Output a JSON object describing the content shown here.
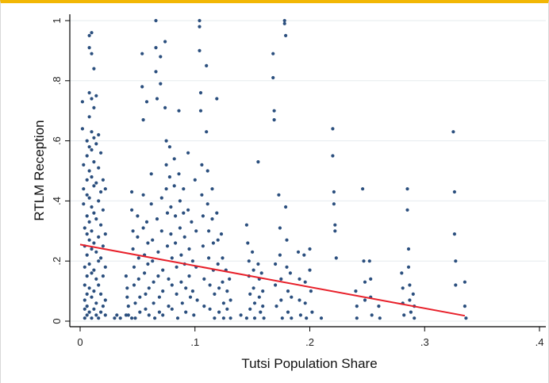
{
  "chart_data": {
    "type": "scatter",
    "xlabel": "Tutsi Population Share",
    "ylabel": "RTLM Reception",
    "xlim": [
      0,
      0.4
    ],
    "ylim": [
      0,
      1
    ],
    "x_ticks": [
      {
        "value": 0,
        "label": "0"
      },
      {
        "value": 0.1,
        "label": ".1"
      },
      {
        "value": 0.2,
        "label": ".2"
      },
      {
        "value": 0.3,
        "label": ".3"
      },
      {
        "value": 0.4,
        "label": ".4"
      }
    ],
    "y_ticks": [
      {
        "value": 0,
        "label": "0"
      },
      {
        "value": 0.2,
        "label": ".2"
      },
      {
        "value": 0.4,
        "label": ".4"
      },
      {
        "value": 0.6,
        "label": ".6"
      },
      {
        "value": 0.8,
        "label": ".8"
      },
      {
        "value": 1,
        "label": "1"
      }
    ],
    "grid": true,
    "point_color": "#2b4f7e",
    "fit_color": "#e8202a",
    "fit_line": {
      "x": [
        0,
        0.335
      ],
      "y": [
        0.255,
        0.018
      ]
    },
    "points": [
      [
        0.002,
        0.73
      ],
      [
        0.002,
        0.64
      ],
      [
        0.003,
        0.52
      ],
      [
        0.003,
        0.44
      ],
      [
        0.003,
        0.39
      ],
      [
        0.004,
        0.31
      ],
      [
        0.004,
        0.25
      ],
      [
        0.004,
        0.18
      ],
      [
        0.004,
        0.12
      ],
      [
        0.004,
        0.07
      ],
      [
        0.004,
        0.04
      ],
      [
        0.004,
        0.01
      ],
      [
        0.006,
        0.6
      ],
      [
        0.006,
        0.55
      ],
      [
        0.006,
        0.47
      ],
      [
        0.006,
        0.42
      ],
      [
        0.006,
        0.35
      ],
      [
        0.006,
        0.29
      ],
      [
        0.006,
        0.22
      ],
      [
        0.006,
        0.15
      ],
      [
        0.006,
        0.09
      ],
      [
        0.006,
        0.05
      ],
      [
        0.006,
        0.02
      ],
      [
        0.008,
        0.95
      ],
      [
        0.008,
        0.91
      ],
      [
        0.008,
        0.76
      ],
      [
        0.008,
        0.68
      ],
      [
        0.008,
        0.58
      ],
      [
        0.008,
        0.5
      ],
      [
        0.008,
        0.41
      ],
      [
        0.008,
        0.33
      ],
      [
        0.008,
        0.27
      ],
      [
        0.008,
        0.19
      ],
      [
        0.008,
        0.11
      ],
      [
        0.008,
        0.03
      ],
      [
        0.01,
        0.96
      ],
      [
        0.01,
        0.89
      ],
      [
        0.01,
        0.74
      ],
      [
        0.01,
        0.63
      ],
      [
        0.01,
        0.57
      ],
      [
        0.01,
        0.48
      ],
      [
        0.01,
        0.38
      ],
      [
        0.01,
        0.3
      ],
      [
        0.01,
        0.24
      ],
      [
        0.01,
        0.16
      ],
      [
        0.01,
        0.08
      ],
      [
        0.01,
        0.01
      ],
      [
        0.012,
        0.84
      ],
      [
        0.012,
        0.71
      ],
      [
        0.012,
        0.61
      ],
      [
        0.012,
        0.53
      ],
      [
        0.012,
        0.45
      ],
      [
        0.012,
        0.36
      ],
      [
        0.012,
        0.26
      ],
      [
        0.012,
        0.17
      ],
      [
        0.012,
        0.1
      ],
      [
        0.012,
        0.04
      ],
      [
        0.014,
        0.75
      ],
      [
        0.014,
        0.59
      ],
      [
        0.014,
        0.46
      ],
      [
        0.014,
        0.34
      ],
      [
        0.014,
        0.23
      ],
      [
        0.014,
        0.14
      ],
      [
        0.014,
        0.06
      ],
      [
        0.014,
        0.02
      ],
      [
        0.016,
        0.62
      ],
      [
        0.016,
        0.51
      ],
      [
        0.016,
        0.4
      ],
      [
        0.016,
        0.28
      ],
      [
        0.016,
        0.2
      ],
      [
        0.016,
        0.12
      ],
      [
        0.016,
        0.01
      ],
      [
        0.018,
        0.56
      ],
      [
        0.018,
        0.43
      ],
      [
        0.018,
        0.32
      ],
      [
        0.018,
        0.21
      ],
      [
        0.018,
        0.09
      ],
      [
        0.018,
        0.03
      ],
      [
        0.02,
        0.47
      ],
      [
        0.02,
        0.37
      ],
      [
        0.02,
        0.25
      ],
      [
        0.02,
        0.15
      ],
      [
        0.02,
        0.05
      ],
      [
        0.022,
        0.44
      ],
      [
        0.022,
        0.29
      ],
      [
        0.022,
        0.18
      ],
      [
        0.022,
        0.07
      ],
      [
        0.022,
        0.02
      ],
      [
        0.03,
        0.01
      ],
      [
        0.032,
        0.02
      ],
      [
        0.035,
        0.01
      ],
      [
        0.04,
        0.02
      ],
      [
        0.045,
        0.01
      ],
      [
        0.04,
        0.15
      ],
      [
        0.041,
        0.11
      ],
      [
        0.041,
        0.08
      ],
      [
        0.042,
        0.05
      ],
      [
        0.042,
        0.02
      ],
      [
        0.045,
        0.43
      ],
      [
        0.045,
        0.37
      ],
      [
        0.046,
        0.3
      ],
      [
        0.046,
        0.24
      ],
      [
        0.047,
        0.18
      ],
      [
        0.047,
        0.12
      ],
      [
        0.048,
        0.06
      ],
      [
        0.048,
        0.01
      ],
      [
        0.05,
        0.35
      ],
      [
        0.05,
        0.28
      ],
      [
        0.051,
        0.21
      ],
      [
        0.051,
        0.14
      ],
      [
        0.052,
        0.08
      ],
      [
        0.052,
        0.03
      ],
      [
        0.054,
        0.89
      ],
      [
        0.054,
        0.78
      ],
      [
        0.055,
        0.67
      ],
      [
        0.055,
        0.42
      ],
      [
        0.055,
        0.31
      ],
      [
        0.056,
        0.22
      ],
      [
        0.056,
        0.16
      ],
      [
        0.057,
        0.09
      ],
      [
        0.057,
        0.04
      ],
      [
        0.058,
        0.73
      ],
      [
        0.058,
        0.33
      ],
      [
        0.059,
        0.26
      ],
      [
        0.059,
        0.19
      ],
      [
        0.06,
        0.11
      ],
      [
        0.06,
        0.02
      ],
      [
        0.062,
        0.49
      ],
      [
        0.062,
        0.39
      ],
      [
        0.063,
        0.27
      ],
      [
        0.063,
        0.2
      ],
      [
        0.064,
        0.13
      ],
      [
        0.064,
        0.06
      ],
      [
        0.065,
        0.01
      ],
      [
        0.066,
        1.0
      ],
      [
        0.066,
        0.91
      ],
      [
        0.066,
        0.83
      ],
      [
        0.067,
        0.74
      ],
      [
        0.067,
        0.34
      ],
      [
        0.068,
        0.23
      ],
      [
        0.068,
        0.15
      ],
      [
        0.069,
        0.08
      ],
      [
        0.069,
        0.03
      ],
      [
        0.07,
        0.88
      ],
      [
        0.07,
        0.79
      ],
      [
        0.071,
        0.41
      ],
      [
        0.071,
        0.3
      ],
      [
        0.072,
        0.17
      ],
      [
        0.072,
        0.1
      ],
      [
        0.072,
        0.02
      ],
      [
        0.074,
        0.93
      ],
      [
        0.074,
        0.71
      ],
      [
        0.075,
        0.6
      ],
      [
        0.075,
        0.52
      ],
      [
        0.075,
        0.44
      ],
      [
        0.076,
        0.36
      ],
      [
        0.076,
        0.25
      ],
      [
        0.077,
        0.14
      ],
      [
        0.077,
        0.05
      ],
      [
        0.078,
        0.58
      ],
      [
        0.078,
        0.48
      ],
      [
        0.079,
        0.38
      ],
      [
        0.079,
        0.29
      ],
      [
        0.08,
        0.21
      ],
      [
        0.08,
        0.12
      ],
      [
        0.08,
        0.04
      ],
      [
        0.082,
        0.54
      ],
      [
        0.082,
        0.45
      ],
      [
        0.083,
        0.35
      ],
      [
        0.083,
        0.26
      ],
      [
        0.084,
        0.18
      ],
      [
        0.084,
        0.09
      ],
      [
        0.085,
        0.01
      ],
      [
        0.086,
        0.7
      ],
      [
        0.086,
        0.49
      ],
      [
        0.087,
        0.4
      ],
      [
        0.087,
        0.31
      ],
      [
        0.088,
        0.22
      ],
      [
        0.088,
        0.13
      ],
      [
        0.089,
        0.06
      ],
      [
        0.09,
        0.44
      ],
      [
        0.09,
        0.36
      ],
      [
        0.091,
        0.28
      ],
      [
        0.091,
        0.19
      ],
      [
        0.092,
        0.11
      ],
      [
        0.092,
        0.03
      ],
      [
        0.094,
        0.56
      ],
      [
        0.094,
        0.37
      ],
      [
        0.095,
        0.24
      ],
      [
        0.095,
        0.15
      ],
      [
        0.096,
        0.08
      ],
      [
        0.097,
        0.33
      ],
      [
        0.098,
        0.2
      ],
      [
        0.098,
        0.1
      ],
      [
        0.099,
        0.02
      ],
      [
        0.1,
        0.47
      ],
      [
        0.101,
        0.3
      ],
      [
        0.101,
        0.18
      ],
      [
        0.102,
        0.07
      ],
      [
        0.104,
        1.0
      ],
      [
        0.104,
        0.98
      ],
      [
        0.104,
        0.9
      ],
      [
        0.105,
        0.76
      ],
      [
        0.105,
        0.7
      ],
      [
        0.106,
        0.52
      ],
      [
        0.106,
        0.42
      ],
      [
        0.107,
        0.35
      ],
      [
        0.107,
        0.25
      ],
      [
        0.108,
        0.14
      ],
      [
        0.108,
        0.05
      ],
      [
        0.11,
        0.85
      ],
      [
        0.11,
        0.63
      ],
      [
        0.111,
        0.5
      ],
      [
        0.111,
        0.39
      ],
      [
        0.112,
        0.3
      ],
      [
        0.112,
        0.21
      ],
      [
        0.113,
        0.12
      ],
      [
        0.113,
        0.04
      ],
      [
        0.115,
        0.44
      ],
      [
        0.115,
        0.34
      ],
      [
        0.116,
        0.26
      ],
      [
        0.116,
        0.17
      ],
      [
        0.117,
        0.09
      ],
      [
        0.117,
        0.01
      ],
      [
        0.119,
        0.74
      ],
      [
        0.119,
        0.36
      ],
      [
        0.12,
        0.27
      ],
      [
        0.12,
        0.19
      ],
      [
        0.121,
        0.11
      ],
      [
        0.121,
        0.03
      ],
      [
        0.123,
        0.29
      ],
      [
        0.124,
        0.21
      ],
      [
        0.124,
        0.13
      ],
      [
        0.125,
        0.06
      ],
      [
        0.125,
        0.01
      ],
      [
        0.127,
        0.17
      ],
      [
        0.128,
        0.1
      ],
      [
        0.128,
        0.04
      ],
      [
        0.13,
        0.14
      ],
      [
        0.131,
        0.07
      ],
      [
        0.131,
        0.01
      ],
      [
        0.14,
        0.02
      ],
      [
        0.145,
        0.01
      ],
      [
        0.145,
        0.32
      ],
      [
        0.146,
        0.26
      ],
      [
        0.147,
        0.2
      ],
      [
        0.147,
        0.15
      ],
      [
        0.148,
        0.09
      ],
      [
        0.148,
        0.04
      ],
      [
        0.15,
        0.23
      ],
      [
        0.151,
        0.17
      ],
      [
        0.151,
        0.11
      ],
      [
        0.152,
        0.06
      ],
      [
        0.152,
        0.01
      ],
      [
        0.155,
        0.53
      ],
      [
        0.155,
        0.19
      ],
      [
        0.156,
        0.14
      ],
      [
        0.156,
        0.08
      ],
      [
        0.157,
        0.03
      ],
      [
        0.158,
        0.16
      ],
      [
        0.159,
        0.1
      ],
      [
        0.159,
        0.05
      ],
      [
        0.16,
        0.01
      ],
      [
        0.168,
        0.89
      ],
      [
        0.168,
        0.81
      ],
      [
        0.169,
        0.7
      ],
      [
        0.169,
        0.67
      ],
      [
        0.17,
        0.19
      ],
      [
        0.17,
        0.12
      ],
      [
        0.171,
        0.05
      ],
      [
        0.173,
        0.42
      ],
      [
        0.174,
        0.31
      ],
      [
        0.174,
        0.22
      ],
      [
        0.175,
        0.14
      ],
      [
        0.175,
        0.07
      ],
      [
        0.176,
        0.01
      ],
      [
        0.178,
        1.0
      ],
      [
        0.178,
        0.99
      ],
      [
        0.179,
        0.95
      ],
      [
        0.179,
        0.38
      ],
      [
        0.18,
        0.27
      ],
      [
        0.18,
        0.18
      ],
      [
        0.181,
        0.1
      ],
      [
        0.181,
        0.03
      ],
      [
        0.183,
        0.16
      ],
      [
        0.184,
        0.08
      ],
      [
        0.184,
        0.01
      ],
      [
        0.19,
        0.23
      ],
      [
        0.191,
        0.14
      ],
      [
        0.191,
        0.07
      ],
      [
        0.192,
        0.02
      ],
      [
        0.195,
        0.22
      ],
      [
        0.196,
        0.13
      ],
      [
        0.196,
        0.06
      ],
      [
        0.197,
        0.01
      ],
      [
        0.2,
        0.24
      ],
      [
        0.2,
        0.17
      ],
      [
        0.201,
        0.1
      ],
      [
        0.202,
        0.03
      ],
      [
        0.21,
        0.01
      ],
      [
        0.22,
        0.64
      ],
      [
        0.22,
        0.55
      ],
      [
        0.221,
        0.43
      ],
      [
        0.221,
        0.39
      ],
      [
        0.222,
        0.32
      ],
      [
        0.222,
        0.3
      ],
      [
        0.223,
        0.21
      ],
      [
        0.24,
        0.1
      ],
      [
        0.241,
        0.05
      ],
      [
        0.241,
        0.01
      ],
      [
        0.246,
        0.44
      ],
      [
        0.247,
        0.2
      ],
      [
        0.248,
        0.13
      ],
      [
        0.248,
        0.07
      ],
      [
        0.252,
        0.2
      ],
      [
        0.253,
        0.14
      ],
      [
        0.253,
        0.08
      ],
      [
        0.254,
        0.02
      ],
      [
        0.26,
        0.05
      ],
      [
        0.261,
        0.01
      ],
      [
        0.28,
        0.16
      ],
      [
        0.281,
        0.11
      ],
      [
        0.281,
        0.06
      ],
      [
        0.282,
        0.02
      ],
      [
        0.285,
        0.44
      ],
      [
        0.285,
        0.37
      ],
      [
        0.286,
        0.24
      ],
      [
        0.286,
        0.18
      ],
      [
        0.287,
        0.12
      ],
      [
        0.287,
        0.07
      ],
      [
        0.288,
        0.03
      ],
      [
        0.29,
        0.09
      ],
      [
        0.291,
        0.05
      ],
      [
        0.291,
        0.01
      ],
      [
        0.325,
        0.63
      ],
      [
        0.326,
        0.43
      ],
      [
        0.326,
        0.29
      ],
      [
        0.327,
        0.2
      ],
      [
        0.327,
        0.12
      ],
      [
        0.335,
        0.13
      ],
      [
        0.335,
        0.05
      ],
      [
        0.336,
        0.01
      ]
    ]
  }
}
